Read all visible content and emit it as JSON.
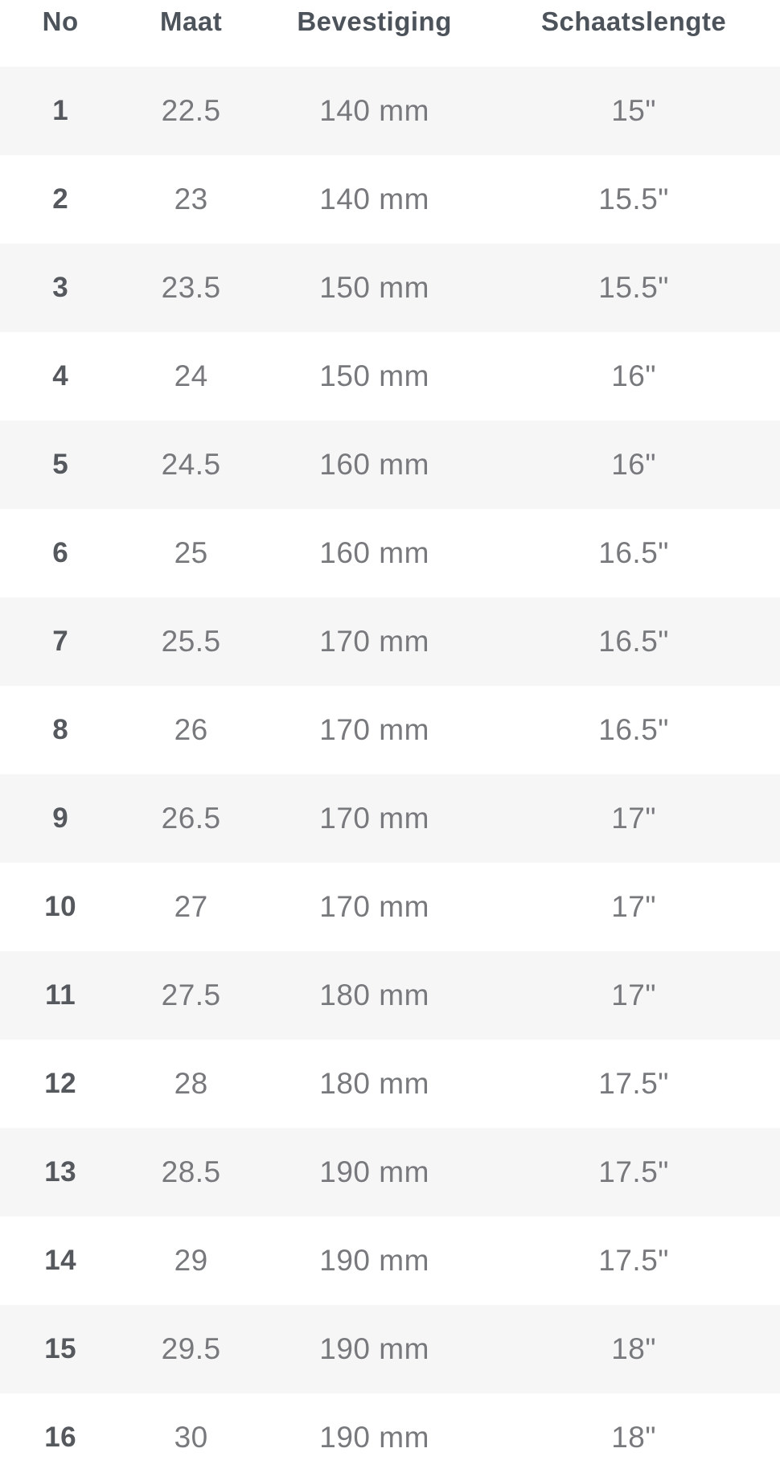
{
  "colors": {
    "row_alt_background": "#f6f6f7",
    "header_text": "#4d535a",
    "cell_text": "#77797c",
    "no_column_text": "#55585d",
    "page_background": "#ffffff"
  },
  "table": {
    "columns": [
      {
        "key": "no",
        "label": "No"
      },
      {
        "key": "maat",
        "label": "Maat"
      },
      {
        "key": "bevestiging",
        "label": "Bevestiging"
      },
      {
        "key": "schaatslengte",
        "label": "Schaatslengte"
      }
    ],
    "rows": [
      {
        "no": "1",
        "maat": "22.5",
        "bevestiging": "140 mm",
        "schaatslengte": "15\""
      },
      {
        "no": "2",
        "maat": "23",
        "bevestiging": "140 mm",
        "schaatslengte": "15.5\""
      },
      {
        "no": "3",
        "maat": "23.5",
        "bevestiging": "150 mm",
        "schaatslengte": "15.5\""
      },
      {
        "no": "4",
        "maat": "24",
        "bevestiging": "150 mm",
        "schaatslengte": "16\""
      },
      {
        "no": "5",
        "maat": "24.5",
        "bevestiging": "160 mm",
        "schaatslengte": "16\""
      },
      {
        "no": "6",
        "maat": "25",
        "bevestiging": "160 mm",
        "schaatslengte": "16.5\""
      },
      {
        "no": "7",
        "maat": "25.5",
        "bevestiging": "170 mm",
        "schaatslengte": "16.5\""
      },
      {
        "no": "8",
        "maat": "26",
        "bevestiging": "170 mm",
        "schaatslengte": "16.5\""
      },
      {
        "no": "9",
        "maat": "26.5",
        "bevestiging": "170 mm",
        "schaatslengte": "17\""
      },
      {
        "no": "10",
        "maat": "27",
        "bevestiging": "170 mm",
        "schaatslengte": "17\""
      },
      {
        "no": "11",
        "maat": "27.5",
        "bevestiging": "180 mm",
        "schaatslengte": "17\""
      },
      {
        "no": "12",
        "maat": "28",
        "bevestiging": "180 mm",
        "schaatslengte": "17.5\""
      },
      {
        "no": "13",
        "maat": "28.5",
        "bevestiging": "190 mm",
        "schaatslengte": "17.5\""
      },
      {
        "no": "14",
        "maat": "29",
        "bevestiging": "190 mm",
        "schaatslengte": "17.5\""
      },
      {
        "no": "15",
        "maat": "29.5",
        "bevestiging": "190 mm",
        "schaatslengte": "18\""
      },
      {
        "no": "16",
        "maat": "30",
        "bevestiging": "190 mm",
        "schaatslengte": "18\""
      }
    ]
  },
  "chart_data": {
    "type": "table",
    "title": "",
    "columns": [
      "No",
      "Maat",
      "Bevestiging",
      "Schaatslengte"
    ],
    "rows": [
      [
        "1",
        "22.5",
        "140 mm",
        "15\""
      ],
      [
        "2",
        "23",
        "140 mm",
        "15.5\""
      ],
      [
        "3",
        "23.5",
        "150 mm",
        "15.5\""
      ],
      [
        "4",
        "24",
        "150 mm",
        "16\""
      ],
      [
        "5",
        "24.5",
        "160 mm",
        "16\""
      ],
      [
        "6",
        "25",
        "160 mm",
        "16.5\""
      ],
      [
        "7",
        "25.5",
        "170 mm",
        "16.5\""
      ],
      [
        "8",
        "26",
        "170 mm",
        "16.5\""
      ],
      [
        "9",
        "26.5",
        "170 mm",
        "17\""
      ],
      [
        "10",
        "27",
        "170 mm",
        "17\""
      ],
      [
        "11",
        "27.5",
        "180 mm",
        "17\""
      ],
      [
        "12",
        "28",
        "180 mm",
        "17.5\""
      ],
      [
        "13",
        "28.5",
        "190 mm",
        "17.5\""
      ],
      [
        "14",
        "29",
        "190 mm",
        "17.5\""
      ],
      [
        "15",
        "29.5",
        "190 mm",
        "18\""
      ],
      [
        "16",
        "30",
        "190 mm",
        "18\""
      ]
    ],
    "layout": {
      "striped": true,
      "stripe_start": "first-data-row",
      "borders": "none",
      "text_align": "center"
    }
  }
}
